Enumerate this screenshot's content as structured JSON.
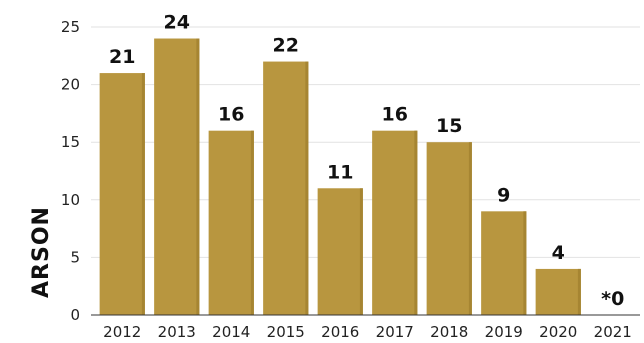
{
  "chart_data": {
    "type": "bar",
    "title": "",
    "xlabel": "",
    "ylabel": "ARSON",
    "categories": [
      "2012",
      "2013",
      "2014",
      "2015",
      "2016",
      "2017",
      "2018",
      "2019",
      "2020",
      "2021"
    ],
    "values": [
      21,
      24,
      16,
      22,
      11,
      16,
      15,
      9,
      4,
      0
    ],
    "data_labels": [
      "21",
      "24",
      "16",
      "22",
      "11",
      "16",
      "15",
      "9",
      "4",
      "*0"
    ],
    "ylim": [
      0,
      25
    ],
    "yticks": [
      0,
      5,
      10,
      15,
      20,
      25
    ],
    "grid": true,
    "legend": "none",
    "colors": {
      "bar": "#b8963f",
      "bar_shadow": "#a68532",
      "grid": "#e2e2e2",
      "axis": "#333333"
    }
  }
}
